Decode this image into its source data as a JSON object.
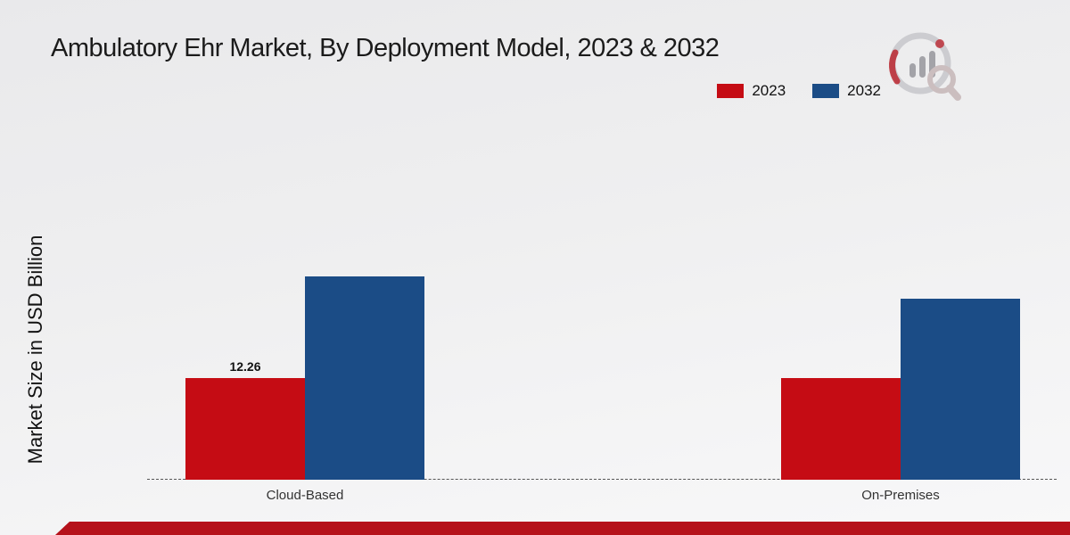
{
  "title": "Ambulatory Ehr Market, By Deployment Model, 2023 & 2032",
  "ylabel": "Market Size in USD Billion",
  "legend": {
    "items": [
      {
        "label": "2023",
        "color": "#c50c14"
      },
      {
        "label": "2032",
        "color": "#1b4c86"
      }
    ]
  },
  "chart_data": {
    "type": "bar",
    "categories": [
      "Cloud-Based",
      "On-Premises"
    ],
    "series": [
      {
        "name": "2023",
        "color": "#c50c14",
        "values": [
          12.26,
          12.2
        ]
      },
      {
        "name": "2032",
        "color": "#1b4c86",
        "values": [
          24.5,
          21.8
        ]
      }
    ],
    "title": "Ambulatory Ehr Market, By Deployment Model, 2023 & 2032",
    "xlabel": "",
    "ylabel": "Market Size in USD Billion",
    "ylim": [
      0,
      47
    ],
    "grid": false,
    "legend_position": "top-right",
    "bar_labels": [
      {
        "series_index": 0,
        "category_index": 0,
        "text": "12.26"
      }
    ]
  },
  "footer_color": "#b5121b"
}
